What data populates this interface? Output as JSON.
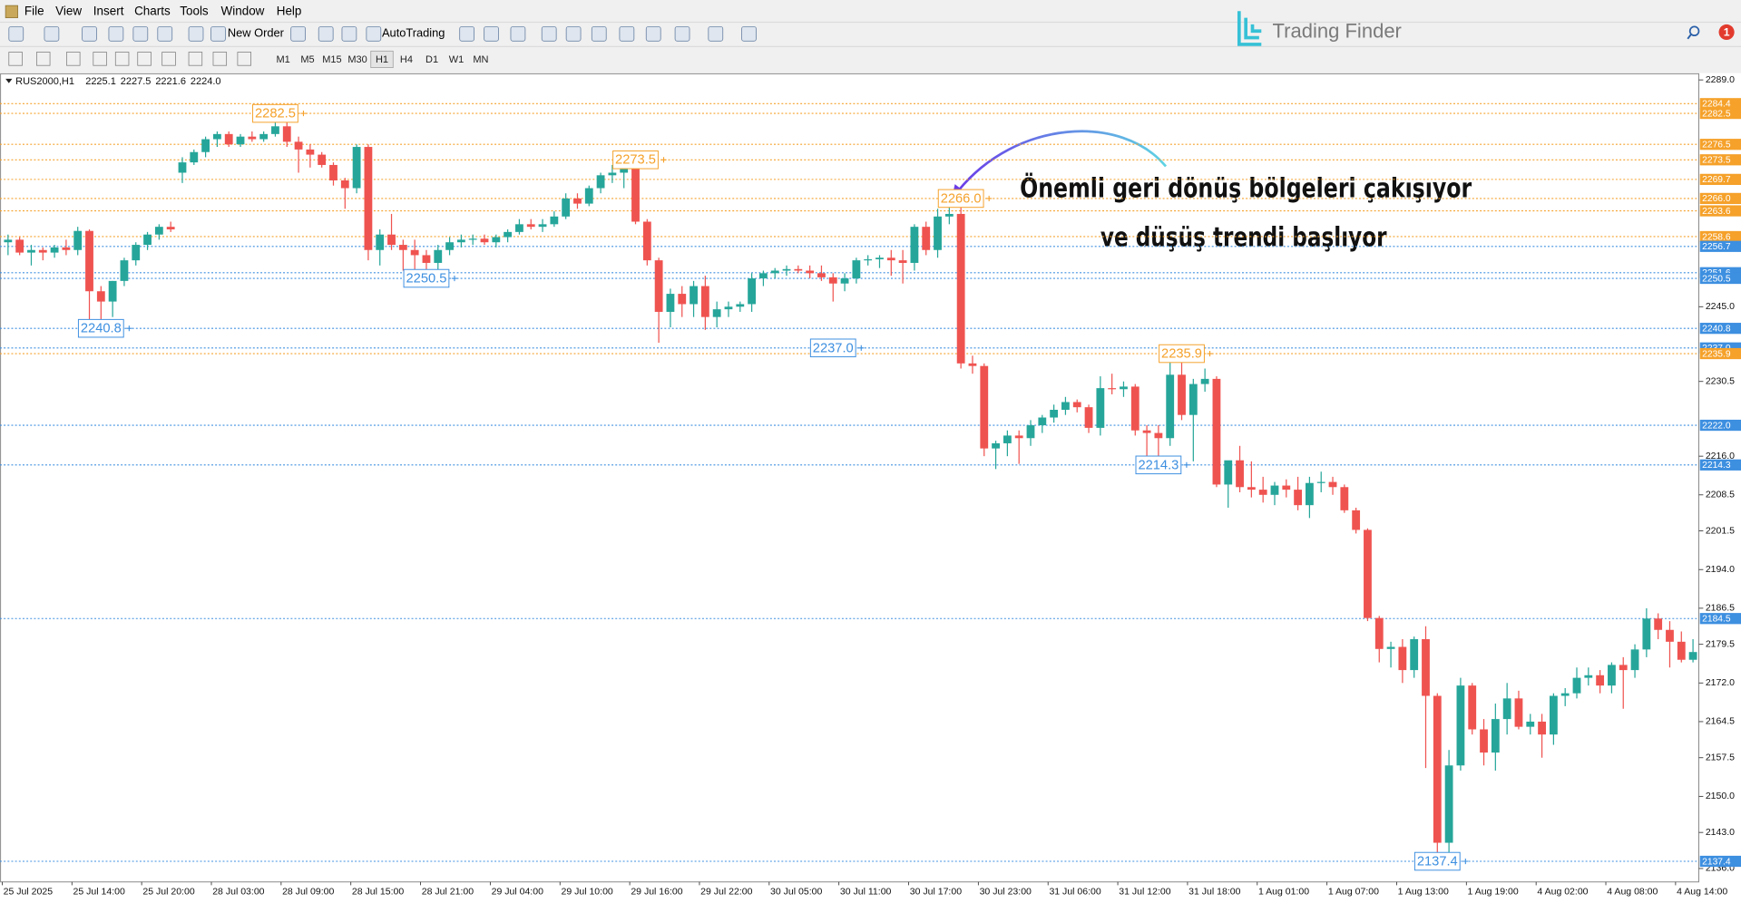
{
  "menu": [
    "File",
    "View",
    "Insert",
    "Charts",
    "Tools",
    "Window",
    "Help"
  ],
  "toolbar": [
    "New Order",
    "AutoTrading"
  ],
  "timeframes": [
    "M1",
    "M5",
    "M15",
    "M30",
    "H1",
    "H4",
    "D1",
    "W1",
    "MN"
  ],
  "brand": "Trading Finder",
  "notifications": 1,
  "chart_data": {
    "type": "candlestick",
    "symbol": "RUS2000,H1",
    "quote": [
      2225.1,
      2227.5,
      2221.6,
      {
        "value": 2224,
        "label": "2224.0"
      }
    ],
    "annotation": [
      "Önemli geri dönüş bölgeleri çakışıyor",
      "ve düşüş trendi başlıyor"
    ],
    "categories": [
      "25 Jul 2025",
      null,
      null,
      null,
      null,
      null,
      "25 Jul 14:00",
      null,
      null,
      null,
      null,
      null,
      "25 Jul 20:00",
      null,
      null,
      null,
      null,
      null,
      "28 Jul 03:00",
      null,
      null,
      null,
      null,
      null,
      "28 Jul 09:00",
      null,
      null,
      null,
      null,
      null,
      "28 Jul 15:00",
      null,
      null,
      null,
      null,
      null,
      "28 Jul 21:00",
      null,
      null,
      null,
      null,
      null,
      "29 Jul 04:00",
      null,
      null,
      null,
      null,
      null,
      "29 Jul 10:00",
      null,
      null,
      null,
      null,
      null,
      "29 Jul 16:00",
      null,
      null,
      null,
      null,
      null,
      "29 Jul 22:00",
      null,
      null,
      null,
      null,
      null,
      "30 Jul 05:00",
      null,
      null,
      null,
      null,
      null,
      "30 Jul 11:00",
      null,
      null,
      null,
      null,
      null,
      "30 Jul 17:00",
      null,
      null,
      null,
      null,
      null,
      "30 Jul 23:00",
      null,
      null,
      null,
      null,
      null,
      "31 Jul 06:00",
      null,
      null,
      null,
      null,
      null,
      "31 Jul 12:00",
      null,
      null,
      null,
      null,
      null,
      "31 Jul 18:00",
      null,
      null,
      null,
      null,
      null,
      "1 Aug 01:00",
      null,
      null,
      null,
      null,
      null,
      "1 Aug 07:00",
      null,
      null,
      null,
      null,
      null,
      "1 Aug 13:00",
      null,
      null,
      null,
      null,
      null,
      "1 Aug 19:00",
      null,
      null,
      null,
      null,
      null,
      "4 Aug 02:00",
      null,
      null,
      null,
      null,
      null,
      "4 Aug 08:00",
      null,
      null,
      null,
      null,
      null,
      "4 Aug 14:00",
      null
    ],
    "open": [
      2257.5,
      2258,
      2255.5,
      2256,
      2255.5,
      2256.5,
      2256,
      2259.7,
      2248,
      2246,
      2250,
      2254,
      2257,
      2259,
      2260.5,
      2271,
      2273,
      2275,
      2277.5,
      2278.5,
      2276.5,
      2278,
      2277.5,
      2278.5,
      2280,
      2277,
      2275.5,
      2274.5,
      2272.5,
      2269.5,
      2268,
      2276,
      2256,
      2259,
      2257,
      2256,
      2255,
      2253.5,
      2256,
      2257.5,
      2258,
      2258.2,
      2257.5,
      2258.5,
      2259.5,
      2261,
      2260.5,
      2261,
      2262.5,
      2266,
      2265,
      2268,
      2270.5,
      2271,
      2272,
      2261.5,
      2254,
      2244,
      2247.5,
      2245.5,
      2249,
      2243,
      2244.5,
      2245,
      2245.5,
      2250.5,
      2251.5,
      2252,
      2252.3,
      2252,
      2251.5,
      2250.7,
      2249.5,
      2250.5,
      2254,
      2254.2,
      2254.5,
      2254,
      2253.5,
      2260.5,
      2256,
      2262.5,
      2263,
      2234,
      2233.5,
      2217.5,
      2218.5,
      2220,
      2219.5,
      2222,
      2223.5,
      2225,
      2226.5,
      2225.5,
      2221.5,
      2229.2,
      2229,
      2229.5,
      2221,
      2220.5,
      2219.5,
      2231.8,
      2224,
      2230,
      2231,
      2210.5,
      2215.2,
      2210,
      2209.5,
      2208.5,
      2210.3,
      2209.5,
      2206.5,
      2210.8,
      2211,
      2210,
      2205.5,
      2201.7,
      2184.6,
      2178.6,
      2179,
      2174.5,
      2180.5,
      2169.5,
      2141,
      2156,
      2171.5,
      2163,
      2158.5,
      2165,
      2169,
      2163.5,
      2164.5,
      2162,
      2169.5,
      2170,
      2173,
      2173.5,
      2171.5,
      2175.5,
      2174.5,
      2178.5,
      2184.5,
      2182.3,
      2180,
      2176.5
    ],
    "high": [
      2259,
      2258.5,
      2257,
      2256.5,
      2257,
      2258,
      2260.5,
      2260,
      2249,
      2250,
      2254.5,
      2257.5,
      2259.5,
      2261,
      2261.5,
      2274,
      2275.5,
      2278,
      2279,
      2279,
      2278.5,
      2279,
      2279,
      2282.5,
      2282,
      2278,
      2276.5,
      2275,
      2273,
      2270,
      2276.5,
      2276.5,
      2260,
      2263,
      2258,
      2258,
      2256,
      2257,
      2258.5,
      2259,
      2259,
      2259,
      2259,
      2260,
      2262,
      2262,
      2262,
      2263.5,
      2267,
      2267,
      2268.5,
      2271,
      2272.5,
      2273.5,
      2273.5,
      2262,
      2254.5,
      2248.5,
      2249,
      2250,
      2251,
      2246,
      2246,
      2246,
      2251.5,
      2252,
      2252.5,
      2253,
      2253,
      2253,
      2253,
      2251.5,
      2251.5,
      2254.5,
      2255,
      2255,
      2256,
      2256,
      2261,
      2261.5,
      2264,
      2266,
      2266,
      2235.5,
      2234,
      2219,
      2221,
      2221,
      2223,
      2224,
      2226,
      2227.5,
      2227,
      2226,
      2231.5,
      2232,
      2230.5,
      2230,
      2222,
      2222,
      2235.5,
      2235.9,
      2231,
      2233,
      2231.5,
      2215,
      2218,
      2215,
      2212,
      2211,
      2211.5,
      2212,
      2212,
      2213,
      2212,
      2210.5,
      2206,
      2202,
      2185,
      2180,
      2180.5,
      2181,
      2183,
      2170,
      2159,
      2173,
      2172,
      2165,
      2168,
      2172,
      2170.5,
      2166,
      2166,
      2170,
      2171,
      2175,
      2175,
      2174.5,
      2176,
      2177,
      2179.5,
      2186.5,
      2185.5,
      2184,
      2182,
      2180.5
    ],
    "low": [
      2255,
      2255,
      2253,
      2254,
      2254.5,
      2255,
      2255,
      2242,
      2240.8,
      2243,
      2249,
      2253,
      2256,
      2258,
      2259.5,
      2269,
      2272.5,
      2274,
      2276,
      2276,
      2276,
      2277,
      2277,
      2278,
      2276,
      2271,
      2272,
      2272,
      2268.5,
      2264,
      2267,
      2254,
      2253,
      2256,
      2252,
      2251,
      2250.5,
      2252,
      2255,
      2256.5,
      2257,
      2257,
      2256.5,
      2257.5,
      2259,
      2260,
      2259.5,
      2260.5,
      2262,
      2264,
      2264.5,
      2267,
      2269,
      2268,
      2261,
      2253,
      2238,
      2241,
      2243,
      2243,
      2240.5,
      2241,
      2243,
      2244,
      2244,
      2249,
      2250.5,
      2251,
      2251.5,
      2250.5,
      2250,
      2246,
      2248,
      2249.5,
      2253,
      2252.5,
      2251,
      2249.5,
      2252,
      2255,
      2254.5,
      2261,
      2233,
      2232,
      2216,
      2213.5,
      2216,
      2214.5,
      2218,
      2220.5,
      2222.5,
      2224,
      2224.5,
      2220.5,
      2220,
      2228,
      2227.5,
      2220,
      2215,
      2214.3,
      2218,
      2223,
      2215,
      2228.5,
      2210,
      2206,
      2209,
      2208,
      2207,
      2206.5,
      2208,
      2205.5,
      2204,
      2209,
      2208.5,
      2205,
      2201,
      2184,
      2176,
      2175,
      2172,
      2173,
      2155.5,
      2137.4,
      2139,
      2155,
      2162,
      2156,
      2155,
      2162,
      2163,
      2162,
      2157.5,
      2160,
      2167.5,
      2169,
      2171.5,
      2170,
      2170,
      2167,
      2173,
      2177,
      2180.5,
      2175,
      2176,
      2176
    ],
    "close": [
      2258,
      2255.5,
      2256,
      2255.5,
      2256.5,
      2256,
      2259.7,
      2248,
      2246,
      2250,
      2254,
      2257,
      2259,
      2260.5,
      2260,
      2273,
      2275,
      2277.5,
      2278.5,
      2276.5,
      2278,
      2277.5,
      2278.5,
      2280,
      2277,
      2275.5,
      2274.5,
      2272.5,
      2269.5,
      2268,
      2276,
      2256,
      2259,
      2257,
      2256,
      2255,
      2253.5,
      2256,
      2257.5,
      2258,
      2258.2,
      2257.5,
      2258.5,
      2259.5,
      2261,
      2260.5,
      2261,
      2262.5,
      2266,
      2265,
      2268,
      2270.5,
      2271,
      2272,
      2261.5,
      2254,
      2244,
      2247.5,
      2245.5,
      2249,
      2243,
      2244.5,
      2245,
      2245.5,
      2250.5,
      2251.5,
      2252,
      2252.3,
      2252,
      2251.5,
      2250.7,
      2249.5,
      2250.5,
      2254,
      2254.2,
      2254.5,
      2254,
      2253.5,
      2260.5,
      2256,
      2262.5,
      2263,
      2234,
      2233.5,
      2217.5,
      2218.5,
      2220,
      2219.5,
      2222,
      2223.5,
      2225,
      2226.5,
      2225.5,
      2221.5,
      2229.2,
      2229,
      2229.5,
      2221,
      2220.5,
      2219.5,
      2231.8,
      2224,
      2230,
      2231,
      2210.5,
      2215.2,
      2210,
      2209.5,
      2208.5,
      2210.3,
      2209.5,
      2206.5,
      2210.8,
      2211,
      2210,
      2205.5,
      2201.7,
      2184.6,
      2178.6,
      2179,
      2174.5,
      2180.5,
      2169.5,
      2141,
      2156,
      2171.5,
      2163,
      2158.5,
      2165,
      2169,
      2163.5,
      2164.5,
      2162,
      2169.5,
      2170,
      2173,
      2173.5,
      2171.5,
      2175.5,
      2174.5,
      2178.5,
      2184.5,
      2182.3,
      2180,
      2176.5,
      2178
    ],
    "up_color": "#26a69a",
    "down_color": "#ef5350",
    "levels": [
      {
        "price": 2284.4,
        "color": "#f5a12a"
      },
      {
        "price": 2282.5,
        "color": "#f5a12a",
        "tag": 23
      },
      {
        "price": 2276.5,
        "color": "#f5a12a"
      },
      {
        "price": 2273.5,
        "color": "#f5a12a",
        "tag": 54
      },
      {
        "price": 2269.7,
        "color": "#f5a12a"
      },
      {
        "price": {
          "value": 2266,
          "label": "2266.0"
        },
        "color": "#f5a12a",
        "tag": 82
      },
      {
        "price": 2263.6,
        "color": "#f5a12a"
      },
      {
        "price": 2258.6,
        "color": "#f5a12a"
      },
      {
        "price": 2256.7,
        "color": "#3d8fe0"
      },
      {
        "price": 2251.6,
        "color": "#3d8fe0"
      },
      {
        "price": 2250.5,
        "color": "#3d8fe0",
        "tag": 36
      },
      {
        "price": 2240.8,
        "color": "#3d8fe0",
        "tag": 8
      },
      {
        "price": {
          "value": 2237,
          "label": "2237.0"
        },
        "color": "#3d8fe0",
        "tag": 71
      },
      {
        "price": 2235.9,
        "color": "#f5a12a",
        "tag": 101
      },
      {
        "price": {
          "value": 2222,
          "label": "2222.0"
        },
        "color": "#3d8fe0"
      },
      {
        "price": 2214.3,
        "color": "#3d8fe0",
        "tag": 99
      },
      {
        "price": 2184.5,
        "color": "#3d8fe0"
      },
      {
        "price": 2137.4,
        "color": "#3d8fe0",
        "tag": 123
      }
    ],
    "ylim": [
      2133.4,
      2290.3
    ],
    "yticks": [
      {
        "value": 2289,
        "label": "2289.0"
      },
      {
        "value": 2245,
        "label": "2245.0"
      },
      2230.5,
      {
        "value": 2216,
        "label": "2216.0"
      },
      2208.5,
      2201.5,
      {
        "value": 2194,
        "label": "2194.0"
      },
      2186.5,
      2179.5,
      {
        "value": 2172,
        "label": "2172.0"
      },
      2164.5,
      2157.5,
      {
        "value": 2150,
        "label": "2150.0"
      },
      {
        "value": 2143,
        "label": "2143.0"
      },
      {
        "value": 2136,
        "label": "2136.0"
      }
    ],
    "grid": false
  }
}
